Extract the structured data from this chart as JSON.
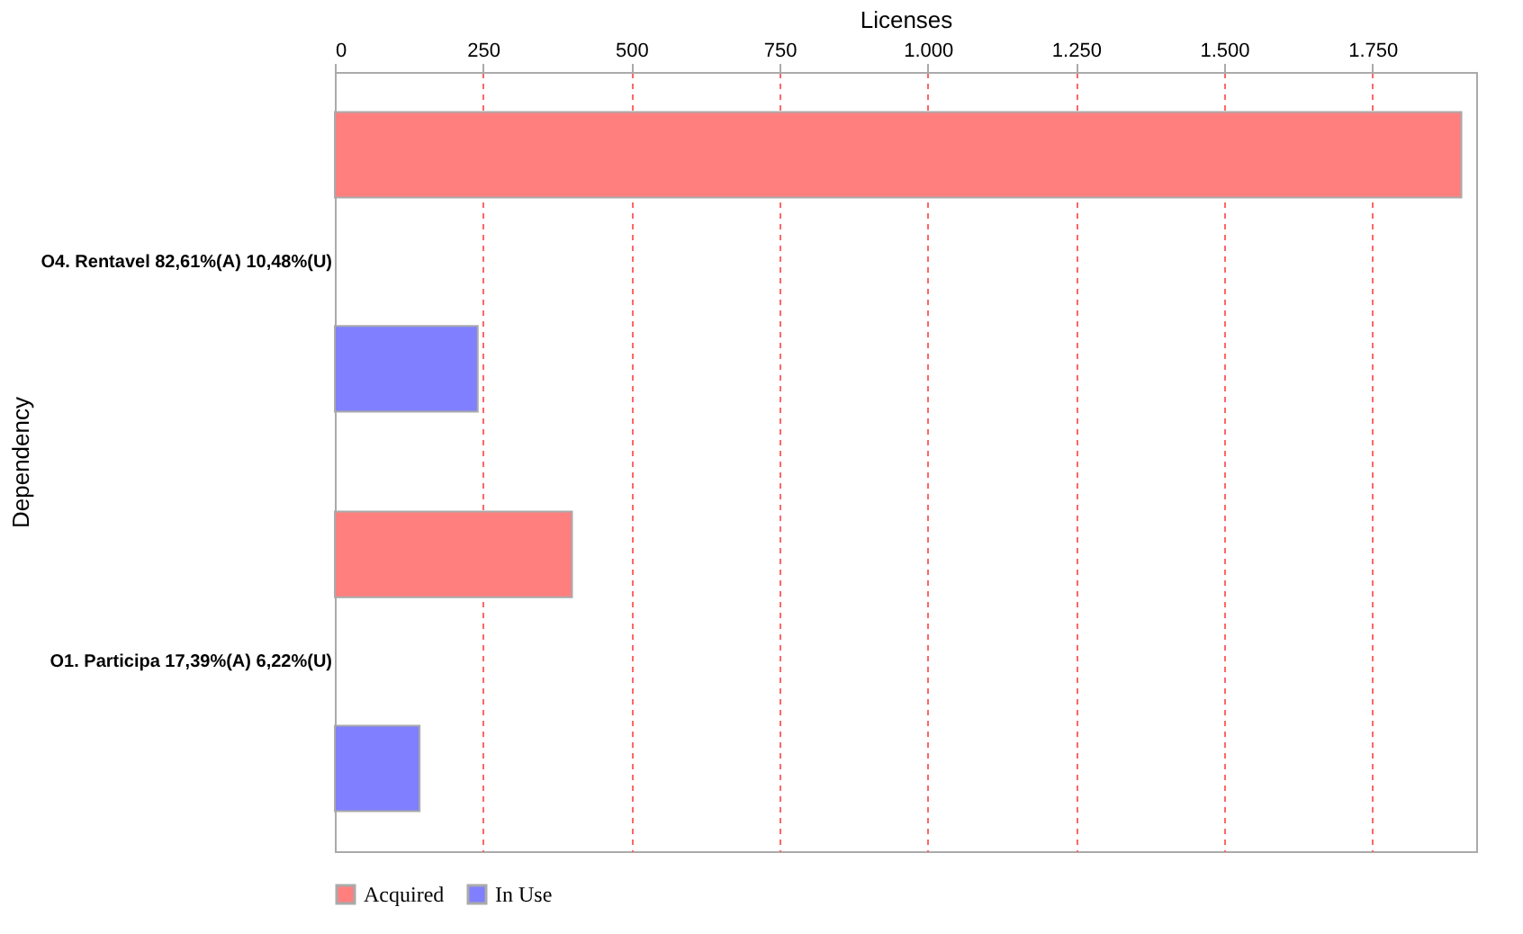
{
  "chart_data": {
    "type": "bar",
    "orientation": "horizontal",
    "xlabel": "Licenses",
    "ylabel": "Dependency",
    "categories": [
      "O4. Rentavel 82,61%(A) 10,48%(U)",
      "O1. Participa 17,39%(A) 6,22%(U)"
    ],
    "series": [
      {
        "name": "Acquired",
        "color": "#ff7f7f",
        "values": [
          1900,
          400
        ]
      },
      {
        "name": "In Use",
        "color": "#7f7fff",
        "values": [
          241,
          143
        ]
      }
    ],
    "xlim": [
      0,
      1925
    ],
    "xticks": [
      0,
      250,
      500,
      750,
      {
        "value": 1000,
        "label": "1.000"
      },
      {
        "value": 1250,
        "label": "1.250"
      },
      {
        "value": 1500,
        "label": "1.500"
      },
      {
        "value": 1750,
        "label": "1.750"
      }
    ],
    "grid": "x",
    "legend": "bottom"
  }
}
